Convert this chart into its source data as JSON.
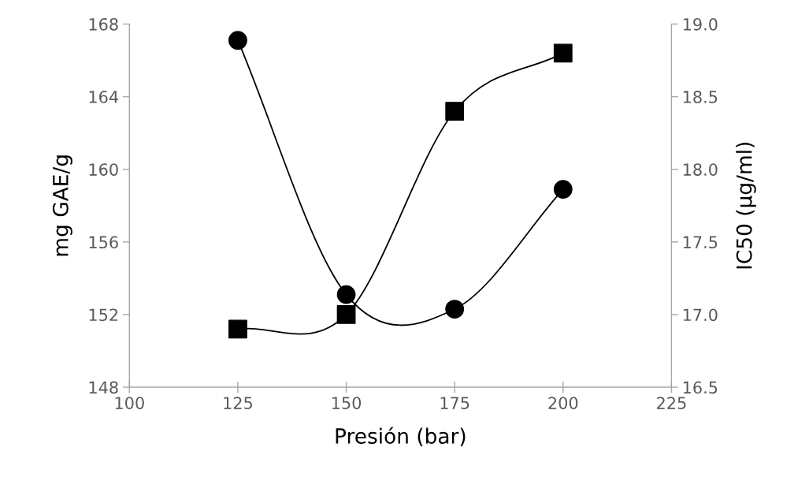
{
  "chart_data": {
    "type": "line",
    "xlabel": "Presión (bar)",
    "ylabel": "mg GAE/g",
    "y2label": "IC50 (µg/ml)",
    "x": [
      125,
      150,
      175,
      200
    ],
    "series": [
      {
        "color": "#000000",
        "marker": "circle",
        "values": [
          167.1,
          153.1,
          152.3,
          158.9
        ]
      },
      {
        "color": "#000000",
        "marker": "square",
        "axis": "y2",
        "values": [
          16.9,
          17.0,
          18.4,
          18.8
        ]
      }
    ],
    "xlim": [
      100,
      225
    ],
    "xticks": [
      100,
      125,
      150,
      175,
      200,
      225
    ],
    "ylim": [
      148,
      168
    ],
    "yticks": [
      148,
      152,
      156,
      160,
      164,
      168
    ],
    "y2lim": [
      16.5,
      19.0
    ],
    "y2ticks": [
      {
        "value": 16.5,
        "label": "16.5"
      },
      {
        "value": 17.0,
        "label": "17.0"
      },
      {
        "value": 17.5,
        "label": "17.5"
      },
      {
        "value": 18.0,
        "label": "18.0"
      },
      {
        "value": 18.5,
        "label": "18.5"
      },
      {
        "value": 19.0,
        "label": "19.0"
      }
    ],
    "grid": false
  }
}
